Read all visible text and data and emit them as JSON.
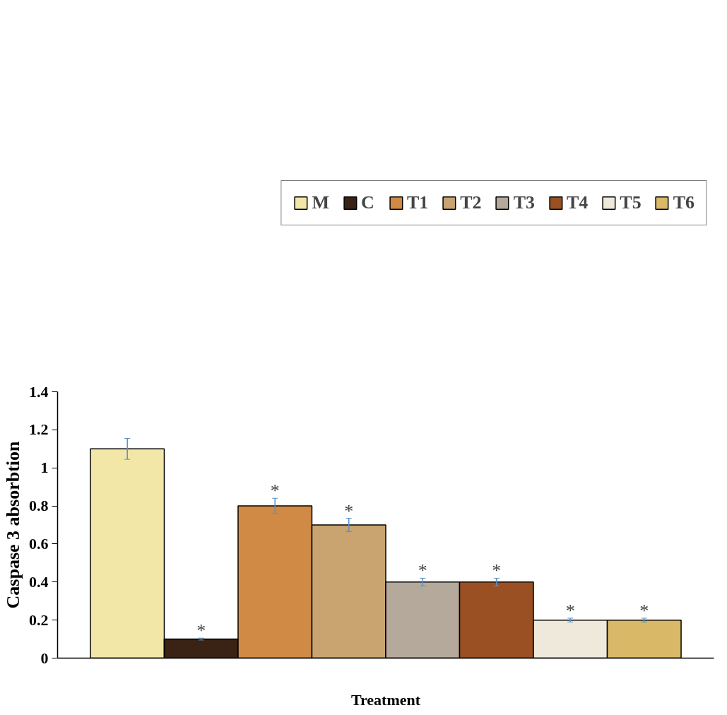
{
  "chart_data": {
    "type": "bar",
    "xlabel": "Treatment",
    "ylabel": "Caspase 3 absorbtion",
    "categories": [
      null
    ],
    "series": [
      {
        "name": "M",
        "color": "#f3e7a8",
        "values": [
          1.1
        ],
        "errors": [
          0.055
        ],
        "value_labels": [
          null
        ]
      },
      {
        "name": "C",
        "color": "#3a2215",
        "values": [
          0.1
        ],
        "errors": [
          0.005
        ],
        "value_labels": [
          "*"
        ]
      },
      {
        "name": "T1",
        "color": "#d08a45",
        "values": [
          0.8
        ],
        "errors": [
          0.04
        ],
        "value_labels": [
          "*"
        ]
      },
      {
        "name": "T2",
        "color": "#c9a370",
        "values": [
          0.7
        ],
        "errors": [
          0.035
        ],
        "value_labels": [
          "*"
        ]
      },
      {
        "name": "T3",
        "color": "#b5a99c",
        "values": [
          0.4
        ],
        "errors": [
          0.02
        ],
        "value_labels": [
          "*"
        ]
      },
      {
        "name": "T4",
        "color": "#9a5023",
        "values": [
          0.4
        ],
        "errors": [
          0.02
        ],
        "value_labels": [
          "*"
        ]
      },
      {
        "name": "T5",
        "color": "#efe9dc",
        "values": [
          0.2
        ],
        "errors": [
          0.01
        ],
        "value_labels": [
          "*"
        ]
      },
      {
        "name": "T6",
        "color": "#d9b867",
        "values": [
          0.2
        ],
        "errors": [
          0.01
        ],
        "value_labels": [
          "*"
        ]
      }
    ],
    "ylim": [
      0,
      1.4
    ],
    "yticks": [
      0,
      0.2,
      0.4,
      0.6,
      0.8,
      1,
      1.2,
      1.4
    ],
    "grid": false,
    "legend": "top"
  }
}
